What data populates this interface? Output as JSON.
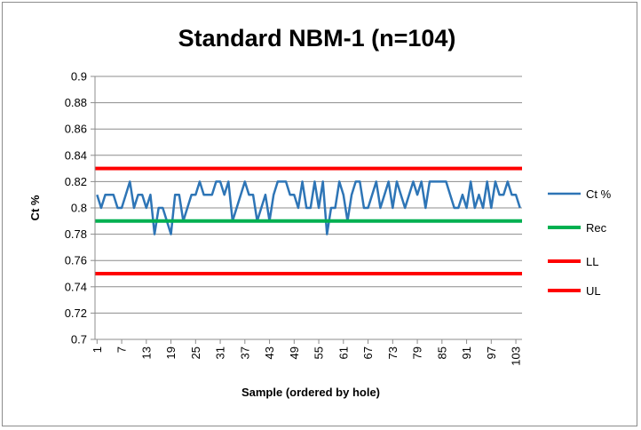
{
  "chart_data": {
    "type": "line",
    "title": "Standard NBM-1  (n=104)",
    "xlabel": "Sample (ordered by hole)",
    "ylabel": "Ct %",
    "ylim": [
      0.7,
      0.9
    ],
    "yticks": [
      0.7,
      0.72,
      0.74,
      0.76,
      0.78,
      0.8,
      0.82,
      0.84,
      0.86,
      0.88,
      0.9
    ],
    "xticks": [
      1,
      7,
      13,
      19,
      25,
      31,
      37,
      43,
      49,
      55,
      61,
      67,
      73,
      79,
      85,
      91,
      97,
      103
    ],
    "x_count": 104,
    "grid": true,
    "legend_position": "right",
    "series": [
      {
        "name": "Ct %",
        "color": "#2e75b6",
        "values": [
          0.81,
          0.8,
          0.81,
          0.81,
          0.81,
          0.8,
          0.8,
          0.81,
          0.82,
          0.8,
          0.81,
          0.81,
          0.8,
          0.81,
          0.78,
          0.8,
          0.8,
          0.79,
          0.78,
          0.81,
          0.81,
          0.79,
          0.8,
          0.81,
          0.81,
          0.82,
          0.81,
          0.81,
          0.81,
          0.82,
          0.82,
          0.81,
          0.82,
          0.79,
          0.8,
          0.81,
          0.82,
          0.81,
          0.81,
          0.79,
          0.8,
          0.81,
          0.79,
          0.81,
          0.82,
          0.82,
          0.82,
          0.81,
          0.81,
          0.8,
          0.82,
          0.8,
          0.8,
          0.82,
          0.8,
          0.82,
          0.78,
          0.8,
          0.8,
          0.82,
          0.81,
          0.79,
          0.81,
          0.82,
          0.82,
          0.8,
          0.8,
          0.81,
          0.82,
          0.8,
          0.81,
          0.82,
          0.8,
          0.82,
          0.81,
          0.8,
          0.81,
          0.82,
          0.81,
          0.82,
          0.8,
          0.82,
          0.82,
          0.82,
          0.82,
          0.82,
          0.81,
          0.8,
          0.8,
          0.81,
          0.8,
          0.82,
          0.8,
          0.81,
          0.8,
          0.82,
          0.8,
          0.82,
          0.81,
          0.81,
          0.82,
          0.81,
          0.81,
          0.8
        ],
        "line_override": [
          0.81,
          0.8,
          0.81,
          0.81,
          0.81,
          0.8,
          0.8,
          0.81,
          0.82,
          0.8,
          0.81,
          0.81,
          0.8,
          0.81,
          0.78,
          0.8,
          0.8,
          0.79,
          0.78,
          0.81,
          0.81,
          0.79,
          0.8,
          0.81,
          0.81,
          0.82,
          0.81,
          0.81,
          0.81,
          0.82,
          0.82,
          0.81,
          0.82,
          0.79,
          0.8,
          0.81,
          0.82,
          0.81,
          0.81,
          0.79,
          0.8,
          0.81,
          0.79,
          0.81,
          0.82,
          0.82,
          0.82,
          0.81,
          0.81,
          0.8,
          0.82,
          0.8,
          0.8,
          0.82,
          0.8,
          0.82,
          0.78,
          0.8,
          0.8,
          0.82,
          0.81,
          0.79,
          0.81,
          0.82,
          0.82,
          0.8,
          0.8,
          0.81,
          0.82,
          0.8,
          0.81,
          0.82,
          0.8,
          0.82,
          0.81,
          0.8,
          0.81,
          0.82,
          0.81,
          0.82,
          0.8,
          0.82,
          0.82,
          0.82,
          0.82,
          0.82,
          0.81,
          0.8,
          0.8,
          0.81,
          0.8,
          0.82,
          0.8,
          0.81,
          0.8,
          0.82,
          0.8,
          0.82,
          0.81,
          0.81,
          0.82,
          0.81,
          0.81,
          0.8
        ]
      },
      {
        "name": "Rec",
        "color": "#00b050",
        "constant": 0.79
      },
      {
        "name": "LL",
        "color": "#ff0000",
        "constant": 0.75
      },
      {
        "name": "UL",
        "color": "#ff0000",
        "constant": 0.83
      }
    ]
  }
}
